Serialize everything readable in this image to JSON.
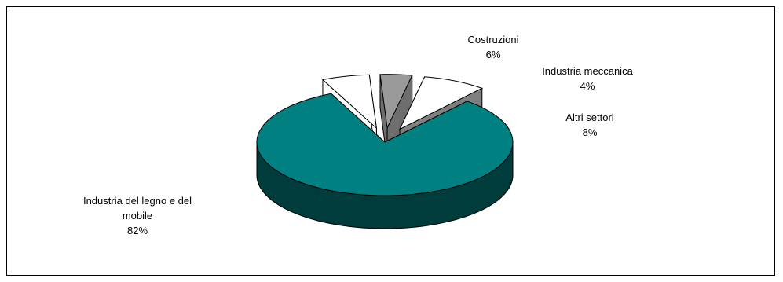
{
  "chart_data": {
    "type": "pie",
    "title": "",
    "style": "3d-exploded",
    "slices": [
      {
        "label": "Industria del legno e del mobile",
        "value": 82,
        "display_value": "82%",
        "color": "#008080",
        "side_color": "#003c3c"
      },
      {
        "label": "Costruzioni",
        "value": 6,
        "display_value": "6%",
        "color": "#ffffff",
        "side_color": "#ffffff"
      },
      {
        "label": "Industria meccanica",
        "value": 4,
        "display_value": "4%",
        "color": "#9a9a9a",
        "side_color": "#6e6e6e"
      },
      {
        "label": "Altri settori",
        "value": 8,
        "display_value": "8%",
        "color": "#ffffff",
        "side_color": "#808080"
      }
    ],
    "legend": "none"
  }
}
